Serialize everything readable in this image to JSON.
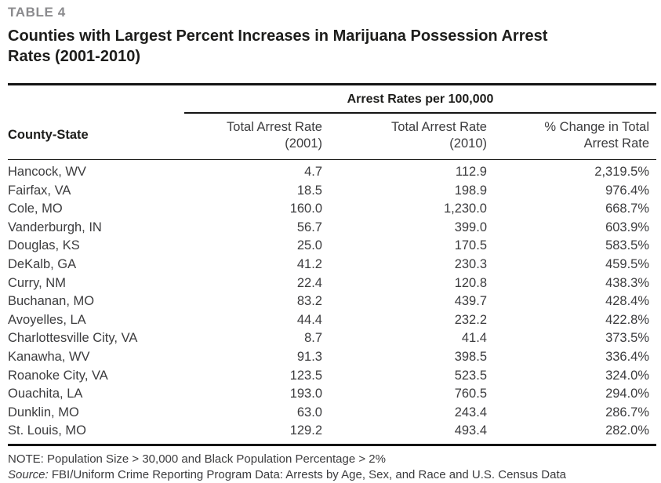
{
  "colors": {
    "table_label_gray": "#8b8b8e",
    "text_dark": "#1d1d1b",
    "text_body": "#3c3c3e",
    "rule_black": "#141414"
  },
  "header": {
    "label": "TABLE 4",
    "title_line1": "Counties with Largest Percent Increases in Marijuana Possession Arrest",
    "title_line2": "Rates (2001-2010)"
  },
  "table": {
    "group_header": "Arrest Rates per 100,000",
    "columns": {
      "county": {
        "label": "County-State"
      },
      "rate_2001": {
        "line1": "Total Arrest Rate",
        "line2": "(2001)"
      },
      "rate_2010": {
        "line1": "Total Arrest Rate",
        "line2": "(2010)"
      },
      "pct_change": {
        "line1": "% Change in Total",
        "line2": "Arrest Rate"
      }
    },
    "rows": [
      {
        "county": "Hancock, WV",
        "rate_2001": "4.7",
        "rate_2010": "112.9",
        "pct_change": "2,319.5%"
      },
      {
        "county": "Fairfax, VA",
        "rate_2001": "18.5",
        "rate_2010": "198.9",
        "pct_change": "976.4%"
      },
      {
        "county": "Cole, MO",
        "rate_2001": "160.0",
        "rate_2010": "1,230.0",
        "pct_change": "668.7%"
      },
      {
        "county": "Vanderburgh, IN",
        "rate_2001": "56.7",
        "rate_2010": "399.0",
        "pct_change": "603.9%"
      },
      {
        "county": "Douglas, KS",
        "rate_2001": "25.0",
        "rate_2010": "170.5",
        "pct_change": "583.5%"
      },
      {
        "county": "DeKalb, GA",
        "rate_2001": "41.2",
        "rate_2010": "230.3",
        "pct_change": "459.5%"
      },
      {
        "county": "Curry, NM",
        "rate_2001": "22.4",
        "rate_2010": "120.8",
        "pct_change": "438.3%"
      },
      {
        "county": "Buchanan, MO",
        "rate_2001": "83.2",
        "rate_2010": "439.7",
        "pct_change": "428.4%"
      },
      {
        "county": "Avoyelles, LA",
        "rate_2001": "44.4",
        "rate_2010": "232.2",
        "pct_change": "422.8%"
      },
      {
        "county": "Charlottesville City, VA",
        "rate_2001": "8.7",
        "rate_2010": "41.4",
        "pct_change": "373.5%"
      },
      {
        "county": "Kanawha, WV",
        "rate_2001": "91.3",
        "rate_2010": "398.5",
        "pct_change": "336.4%"
      },
      {
        "county": "Roanoke City, VA",
        "rate_2001": "123.5",
        "rate_2010": "523.5",
        "pct_change": "324.0%"
      },
      {
        "county": "Ouachita, LA",
        "rate_2001": "193.0",
        "rate_2010": "760.5",
        "pct_change": "294.0%"
      },
      {
        "county": "Dunklin, MO",
        "rate_2001": "63.0",
        "rate_2010": "243.4",
        "pct_change": "286.7%"
      },
      {
        "county": "St. Louis, MO",
        "rate_2001": "129.2",
        "rate_2010": "493.4",
        "pct_change": "282.0%"
      }
    ]
  },
  "notes": {
    "note": "NOTE: Population Size > 30,000 and Black Population Percentage > 2%",
    "source_label": "Source:",
    "source_text": " FBI/Uniform Crime Reporting Program Data: Arrests by Age, Sex, and Race and U.S. Census Data"
  }
}
